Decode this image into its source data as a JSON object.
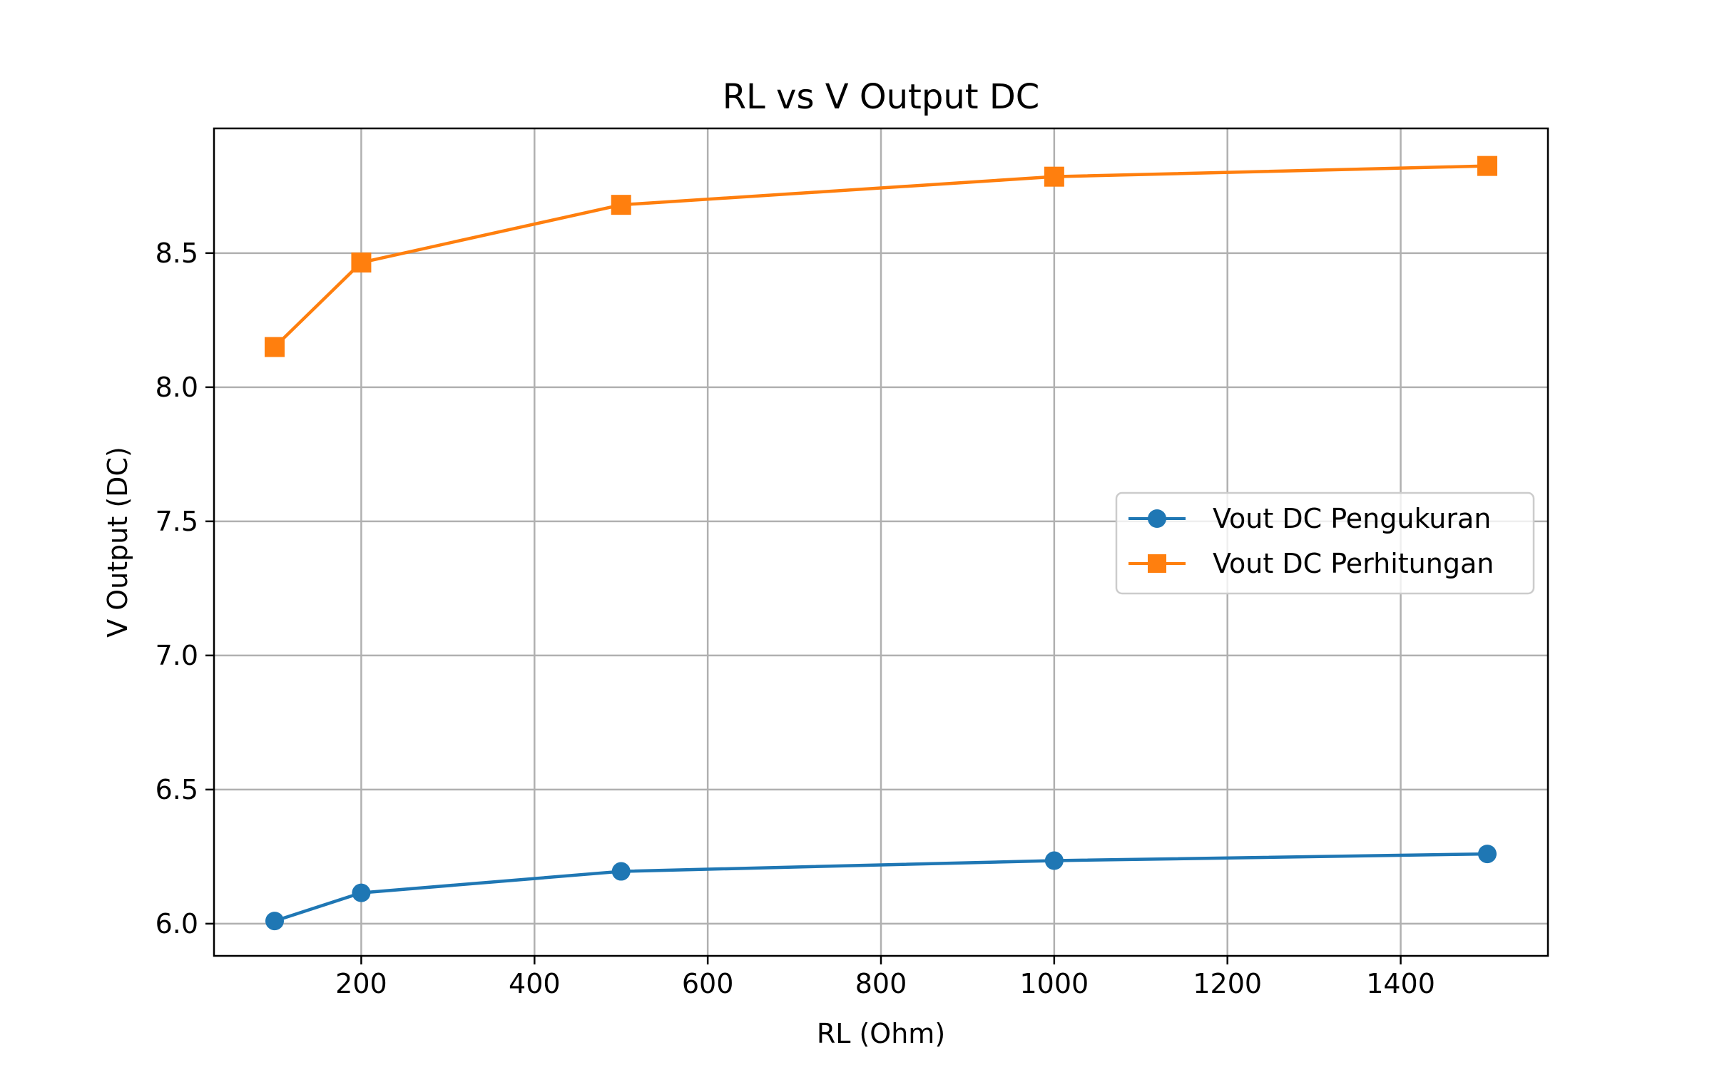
{
  "chart_data": {
    "type": "line",
    "title": "RL vs V Output DC",
    "xlabel": "RL (Ohm)",
    "ylabel": "V Output (DC)",
    "x": [
      100,
      200,
      500,
      1000,
      1500
    ],
    "series": [
      {
        "name": "Vout DC Pengukuran",
        "values": [
          6.01,
          6.115,
          6.195,
          6.235,
          6.26
        ],
        "color": "#1f77b4",
        "marker": "circle"
      },
      {
        "name": "Vout DC Perhitungan",
        "values": [
          8.15,
          8.465,
          8.68,
          8.785,
          8.825
        ],
        "color": "#ff7f0e",
        "marker": "square"
      }
    ],
    "xlim": [
      30,
      1570
    ],
    "ylim": [
      5.88,
      8.965
    ],
    "xticks": [
      200,
      400,
      600,
      800,
      1000,
      1200,
      1400
    ],
    "yticks": [
      6.0,
      6.5,
      7.0,
      7.5,
      8.0,
      8.5
    ],
    "xtick_labels": [
      "200",
      "400",
      "600",
      "800",
      "1000",
      "1200",
      "1400"
    ],
    "ytick_labels": [
      "6.0",
      "6.5",
      "7.0",
      "7.5",
      "8.0",
      "8.5"
    ],
    "grid": true,
    "legend_position": "center-right"
  }
}
